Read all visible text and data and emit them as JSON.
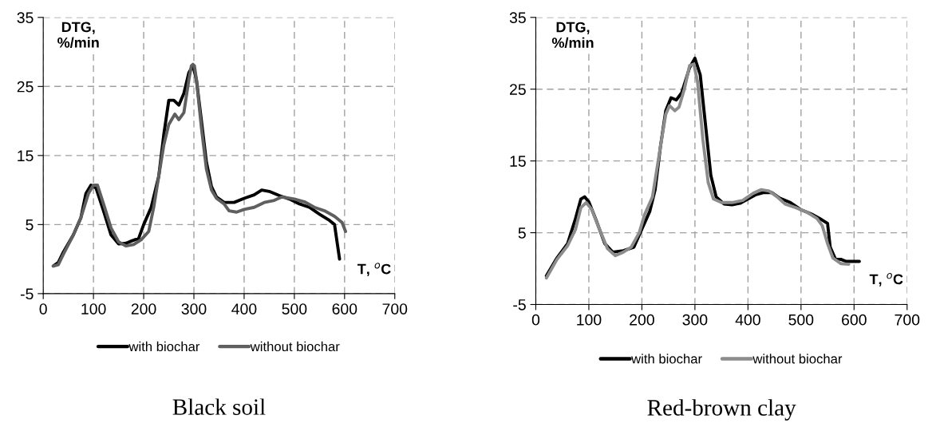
{
  "chart_data": [
    {
      "type": "line",
      "title": "Black soil",
      "xlabel": "T, $^{o}$C",
      "ylabel": "DTG,\n%/min",
      "xlim": [
        0,
        700
      ],
      "xticks": [
        0,
        100,
        200,
        300,
        400,
        500,
        600,
        700
      ],
      "ylim": [
        -5,
        35
      ],
      "yticks": [
        -5,
        5,
        15,
        25,
        35
      ],
      "grid": true,
      "legend": "bottom",
      "series": [
        {
          "name": "with biochar",
          "color": "#000000",
          "x": [
            20,
            30,
            40,
            60,
            75,
            85,
            95,
            105,
            120,
            135,
            150,
            165,
            175,
            190,
            200,
            215,
            230,
            240,
            250,
            260,
            270,
            280,
            290,
            298,
            305,
            315,
            325,
            335,
            345,
            360,
            380,
            400,
            420,
            435,
            450,
            470,
            490,
            510,
            530,
            550,
            570,
            580,
            586,
            590
          ],
          "values": [
            -1,
            -0.5,
            1,
            3.5,
            6,
            9.5,
            10.7,
            10.3,
            7,
            3.5,
            2.2,
            2.3,
            2.6,
            3,
            5,
            7.5,
            12,
            18,
            23,
            23,
            22.3,
            24,
            27,
            28,
            26,
            20,
            14,
            10.5,
            9,
            8.2,
            8.2,
            8.8,
            9.3,
            10,
            9.8,
            9.2,
            8.7,
            8,
            7.5,
            6.5,
            5.6,
            5,
            2,
            0
          ]
        },
        {
          "name": "without biochar",
          "color": "#5f5f5f",
          "x": [
            20,
            30,
            40,
            60,
            75,
            90,
            100,
            108,
            120,
            135,
            150,
            165,
            180,
            195,
            210,
            220,
            230,
            240,
            250,
            262,
            270,
            280,
            290,
            295,
            298,
            301,
            305,
            315,
            325,
            335,
            345,
            360,
            370,
            385,
            400,
            420,
            440,
            460,
            475,
            500,
            520,
            540,
            560,
            580,
            595,
            602
          ],
          "values": [
            -1,
            -0.8,
            0.7,
            3.5,
            6,
            9.5,
            10.7,
            10.7,
            8,
            4.5,
            2.5,
            1.9,
            2.1,
            2.8,
            4,
            7.5,
            12,
            16.5,
            19.5,
            21,
            20.2,
            21.2,
            26,
            28,
            28.2,
            28,
            26,
            19,
            13,
            10,
            8.8,
            8,
            7,
            6.8,
            7.2,
            7.5,
            8.2,
            8.5,
            9,
            8.7,
            8.3,
            7.5,
            7,
            6.2,
            5.3,
            4
          ]
        }
      ]
    },
    {
      "type": "line",
      "title": "Red-brown clay",
      "xlabel": "T, $^{o}$C",
      "ylabel": "DTG,\n%/min",
      "xlim": [
        0,
        700
      ],
      "xticks": [
        0,
        100,
        200,
        300,
        400,
        500,
        600,
        700
      ],
      "ylim": [
        -5,
        35
      ],
      "yticks": [
        -5,
        5,
        15,
        25,
        35
      ],
      "grid": true,
      "legend": "bottom",
      "series": [
        {
          "name": "with biochar",
          "color": "#000000",
          "x": [
            20,
            40,
            60,
            75,
            85,
            92,
            100,
            115,
            130,
            145,
            165,
            185,
            200,
            215,
            225,
            235,
            245,
            255,
            265,
            275,
            290,
            300,
            310,
            320,
            330,
            340,
            355,
            370,
            385,
            400,
            415,
            430,
            445,
            460,
            480,
            500,
            520,
            535,
            550,
            555,
            565,
            575,
            585,
            610
          ],
          "values": [
            -1,
            1.5,
            3.5,
            7,
            9.7,
            10,
            9.3,
            6.5,
            3.5,
            2.3,
            2.5,
            3,
            5.5,
            8,
            11,
            17,
            22,
            23.8,
            23.5,
            24.5,
            28,
            29.3,
            27,
            20,
            13,
            10,
            9,
            8.9,
            9.1,
            9.7,
            10.3,
            10.6,
            10.6,
            9.8,
            9.2,
            8.2,
            7.6,
            7,
            6.3,
            3,
            1.3,
            1.3,
            1,
            1
          ]
        },
        {
          "name": "without biochar",
          "color": "#8c8c8c",
          "x": [
            20,
            40,
            60,
            75,
            85,
            95,
            105,
            120,
            135,
            150,
            165,
            180,
            195,
            205,
            220,
            235,
            245,
            252,
            262,
            270,
            280,
            290,
            298,
            305,
            315,
            325,
            335,
            350,
            370,
            390,
            410,
            425,
            440,
            455,
            470,
            490,
            510,
            530,
            540,
            550,
            560,
            575,
            590
          ],
          "values": [
            -1.3,
            1.3,
            3.2,
            5.5,
            8.5,
            9.2,
            8.3,
            5.5,
            2.8,
            1.8,
            2.3,
            3,
            5,
            7.5,
            10,
            17,
            21.5,
            22.7,
            22,
            22.5,
            25,
            28.3,
            28.5,
            26,
            18,
            12,
            9.7,
            9.2,
            9.2,
            9.5,
            10.5,
            11,
            10.8,
            10,
            9,
            8.5,
            7.9,
            7,
            6,
            3.5,
            1.5,
            0.7,
            0.6
          ]
        }
      ]
    }
  ]
}
